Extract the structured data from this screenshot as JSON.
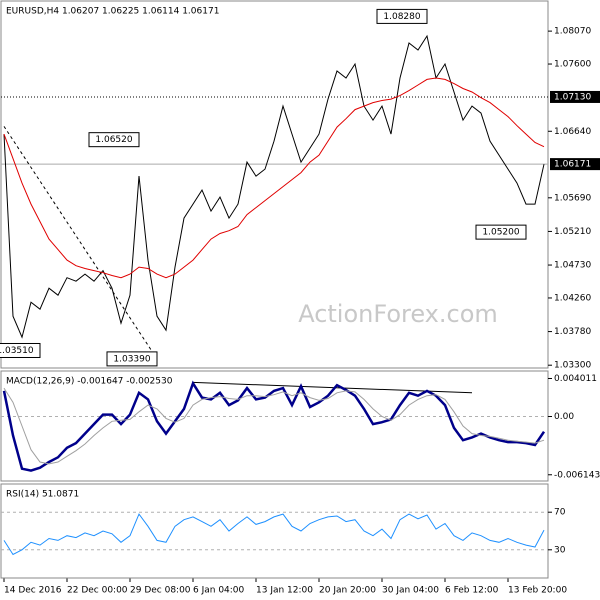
{
  "chart_data": [
    {
      "type": "line",
      "title": "EURUSD,H4  1.06207 1.06225 1.06114 1.06171",
      "watermark": "ActionForex.com",
      "categories": [
        "14 Dec 2016",
        null,
        null,
        null,
        null,
        null,
        null,
        "22 Dec 00:00",
        null,
        null,
        null,
        null,
        null,
        null,
        "29 Dec 08:00",
        null,
        null,
        null,
        null,
        null,
        null,
        "6 Jan 04:00",
        null,
        null,
        null,
        null,
        null,
        null,
        "13 Jan 12:00",
        null,
        null,
        null,
        null,
        null,
        null,
        "20 Jan 20:00",
        null,
        null,
        null,
        null,
        null,
        null,
        "30 Jan 04:00",
        null,
        null,
        null,
        null,
        null,
        null,
        "6 Feb 12:00",
        null,
        null,
        null,
        null,
        null,
        null,
        "13 Feb 20:00",
        null,
        null,
        null,
        null
      ],
      "series": [
        {
          "name": "EURUSD",
          "color": "#000000",
          "values": [
            1.066,
            1.04,
            1.037,
            1.042,
            1.041,
            1.044,
            1.043,
            1.0455,
            1.045,
            1.046,
            1.045,
            1.0465,
            1.044,
            1.039,
            1.043,
            1.06,
            1.048,
            1.04,
            1.038,
            1.047,
            1.054,
            1.056,
            1.058,
            1.055,
            1.057,
            1.054,
            1.056,
            1.062,
            1.06,
            1.061,
            1.065,
            1.07,
            1.066,
            1.062,
            1.064,
            1.066,
            1.071,
            1.075,
            1.074,
            1.076,
            1.07,
            1.068,
            1.07,
            1.066,
            1.074,
            1.079,
            1.078,
            1.08,
            1.074,
            1.076,
            1.072,
            1.068,
            1.07,
            1.069,
            1.065,
            1.063,
            1.061,
            1.059,
            1.056,
            1.056,
            1.0617
          ]
        },
        {
          "color": "#e00000",
          "values": [
            1.066,
            1.0625,
            1.059,
            1.056,
            1.0535,
            1.051,
            1.0495,
            1.048,
            1.0472,
            1.0468,
            1.0465,
            1.0462,
            1.0458,
            1.0455,
            1.046,
            1.047,
            1.0468,
            1.046,
            1.0455,
            1.046,
            1.047,
            1.048,
            1.0495,
            1.051,
            1.0518,
            1.0522,
            1.0528,
            1.0545,
            1.0555,
            1.0565,
            1.0575,
            1.0585,
            1.0595,
            1.0605,
            1.062,
            1.063,
            1.065,
            1.067,
            1.0682,
            1.0695,
            1.07,
            1.0705,
            1.0708,
            1.071,
            1.0715,
            1.0722,
            1.073,
            1.0738,
            1.074,
            1.0738,
            1.0732,
            1.0725,
            1.072,
            1.0712,
            1.0705,
            1.0695,
            1.0685,
            1.0672,
            1.066,
            1.0648,
            1.0642
          ]
        }
      ],
      "ylim": [
        1.0326,
        1.085
      ],
      "yticks": [
        {
          "value": 1.0807,
          "label": "1.08070"
        },
        {
          "value": 1.076,
          "label": "1.07600"
        },
        {
          "value": 1.0664,
          "label": "1.06640"
        },
        {
          "value": 1.0569,
          "label": "1.05690"
        },
        {
          "value": 1.0521,
          "label": "1.05210"
        },
        {
          "value": 1.0473,
          "label": "1.04730"
        },
        {
          "value": 1.0426,
          "label": "1.04260"
        },
        {
          "value": 1.0378,
          "label": "1.03780"
        },
        {
          "value": 1.033,
          "label": "1.03300"
        }
      ],
      "hlines": [
        {
          "value": 1.0713,
          "label": "1.07130",
          "style": "dotted"
        },
        {
          "value": 1.06171,
          "style": "solid"
        }
      ],
      "trendline": {
        "x": [
          0,
          17
        ],
        "y": [
          1.0671,
          1.0339
        ]
      },
      "annotations": [
        {
          "label": "1.08280",
          "value": 1.0828,
          "index": 47
        },
        {
          "label": "1.06520",
          "value": 1.0652,
          "index": 15
        },
        {
          "label": "1.05200",
          "value": 1.052,
          "index": 58
        },
        {
          "label": "1.03510",
          "value": 1.0351,
          "index": 4
        },
        {
          "label": "1.03390",
          "value": 1.0339,
          "index": 17
        }
      ]
    },
    {
      "type": "line",
      "title": "MACD(12,26,9) -0.001647 -0.002530",
      "series": [
        {
          "color": "#00008b",
          "values": [
            0.0027,
            -0.002,
            -0.0055,
            -0.0057,
            -0.0054,
            -0.0048,
            -0.0043,
            -0.0033,
            -0.0028,
            -0.0018,
            -0.0008,
            0.0002,
            0.0002,
            -0.0008,
            0.0002,
            0.0025,
            0.0018,
            -0.0005,
            -0.0018,
            -0.0005,
            0.0008,
            0.0035,
            0.002,
            0.0018,
            0.0025,
            0.0012,
            0.0017,
            0.003,
            0.0018,
            0.002,
            0.0027,
            0.003,
            0.0012,
            0.0032,
            0.001,
            0.0015,
            0.0022,
            0.0033,
            0.0028,
            0.0022,
            0.0008,
            -0.0008,
            -0.0006,
            -0.0003,
            0.0012,
            0.0025,
            0.0022,
            0.0027,
            0.0022,
            0.0012,
            -0.0012,
            -0.0025,
            -0.0022,
            -0.0018,
            -0.0022,
            -0.0025,
            -0.0027,
            -0.0027,
            -0.0028,
            -0.003,
            -0.0016
          ]
        },
        {
          "color": "#a0a0a0",
          "values": [
            0.003,
            0.0015,
            -0.001,
            -0.0035,
            -0.0048,
            -0.005,
            -0.0048,
            -0.0042,
            -0.0036,
            -0.0029,
            -0.002,
            -0.0012,
            -0.0005,
            -0.0004,
            -0.0003,
            0.0005,
            0.0012,
            0.0008,
            -0.0002,
            -0.0006,
            -0.0002,
            0.0012,
            0.0018,
            0.002,
            0.0021,
            0.0019,
            0.0018,
            0.0022,
            0.0022,
            0.0021,
            0.0023,
            0.0026,
            0.0022,
            0.0025,
            0.002,
            0.0017,
            0.0019,
            0.0025,
            0.0027,
            0.0026,
            0.0018,
            0.0008,
            0,
            -0.0004,
            0.0002,
            0.0012,
            0.0018,
            0.0022,
            0.0023,
            0.0018,
            0.0005,
            -0.001,
            -0.0018,
            -0.002,
            -0.0021,
            -0.0023,
            -0.0025,
            -0.0026,
            -0.0027,
            -0.0028,
            -0.0025
          ]
        }
      ],
      "ylim": [
        -0.0068,
        0.0048
      ],
      "yticks": [
        0.004011,
        {
          "value": 0,
          "label": "0.00"
        },
        -0.006143
      ],
      "levels": [
        0
      ],
      "trendline": {
        "x": [
          21,
          52
        ],
        "y": [
          0.0036,
          0.0025
        ]
      }
    },
    {
      "type": "line",
      "title": "RSI(14) 51.0871",
      "series": [
        {
          "color": "#1e90ff",
          "values": [
            40,
            25,
            30,
            38,
            35,
            42,
            40,
            45,
            43,
            48,
            45,
            50,
            47,
            38,
            45,
            68,
            55,
            40,
            38,
            55,
            62,
            65,
            60,
            55,
            62,
            50,
            58,
            65,
            57,
            60,
            65,
            68,
            55,
            50,
            58,
            62,
            65,
            66,
            60,
            62,
            50,
            45,
            52,
            42,
            62,
            68,
            63,
            67,
            52,
            58,
            45,
            40,
            48,
            45,
            40,
            38,
            42,
            38,
            35,
            33,
            51
          ]
        }
      ],
      "ylim": [
        0,
        100
      ],
      "yticks": [
        70,
        30
      ],
      "levels": [
        70,
        30
      ]
    }
  ]
}
